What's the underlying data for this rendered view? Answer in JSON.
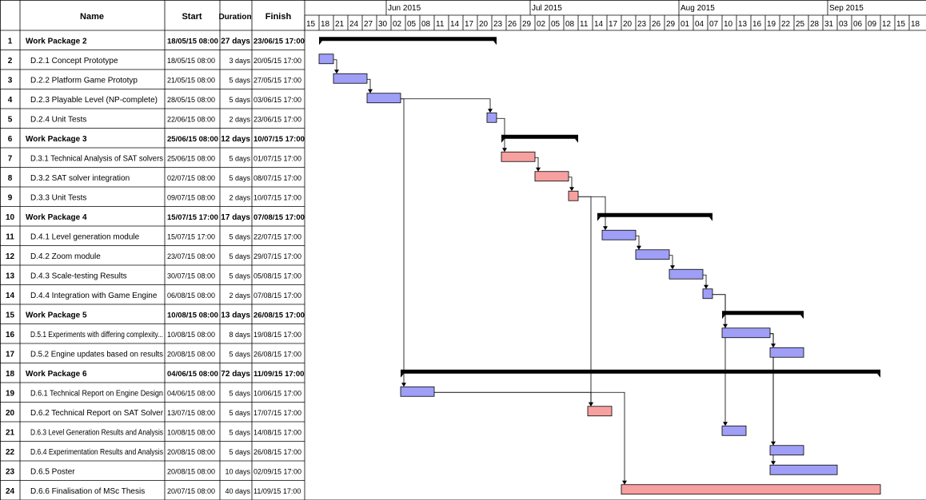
{
  "header": {
    "name_label": "Name",
    "start_label": "Start",
    "duration_label": "Duration",
    "finish_label": "Finish"
  },
  "colors": {
    "summary": "#000000",
    "task_blue": "#9f9ff7",
    "task_red": "#f7a0a0",
    "gridline": "#000000"
  },
  "chart_data": {
    "type": "gantt",
    "timeline": {
      "start_date": "2015-05-15",
      "end_date": "2015-09-18",
      "tick_interval_days": 3,
      "tick_labels": [
        "15",
        "18",
        "21",
        "24",
        "27",
        "30",
        "02",
        "05",
        "08",
        "11",
        "14",
        "17",
        "20",
        "23",
        "26",
        "29",
        "02",
        "05",
        "08",
        "11",
        "14",
        "17",
        "20",
        "23",
        "26",
        "29",
        "01",
        "04",
        "07",
        "10",
        "13",
        "16",
        "19",
        "22",
        "25",
        "28",
        "31",
        "03",
        "06",
        "09",
        "12",
        "15",
        "18"
      ],
      "months": [
        {
          "label": "Jun 2015",
          "date": "2015-06-01"
        },
        {
          "label": "Jul 2015",
          "date": "2015-07-01"
        },
        {
          "label": "Aug 2015",
          "date": "2015-08-01"
        },
        {
          "label": "Sep 2015",
          "date": "2015-09-01"
        }
      ]
    },
    "tasks": [
      {
        "id": "1",
        "name": "Work Package 2",
        "start": "18/05/15 08:00",
        "duration": "27 days",
        "finish": "23/06/15 17:00",
        "summary": true,
        "bar_start": "2015-05-18",
        "bar_end": "2015-06-23"
      },
      {
        "id": "2",
        "name": "D.2.1 Concept Prototype",
        "start": "18/05/15 08:00",
        "duration": "3 days",
        "finish": "20/05/15 17:00",
        "summary": false,
        "color": "blue",
        "bar_start": "2015-05-18",
        "bar_end": "2015-05-20"
      },
      {
        "id": "3",
        "name": "D.2.2 Platform Game Prototyp",
        "start": "21/05/15 08:00",
        "duration": "5 days",
        "finish": "27/05/15 17:00",
        "summary": false,
        "color": "blue",
        "bar_start": "2015-05-21",
        "bar_end": "2015-05-27"
      },
      {
        "id": "4",
        "name": "D.2.3 Playable Level (NP-complete)",
        "start": "28/05/15 08:00",
        "duration": "5 days",
        "finish": "03/06/15 17:00",
        "summary": false,
        "color": "blue",
        "bar_start": "2015-05-28",
        "bar_end": "2015-06-03"
      },
      {
        "id": "5",
        "name": "D.2.4 Unit Tests",
        "start": "22/06/15 08:00",
        "duration": "2 days",
        "finish": "23/06/15 17:00",
        "summary": false,
        "color": "blue",
        "bar_start": "2015-06-22",
        "bar_end": "2015-06-23"
      },
      {
        "id": "6",
        "name": "Work Package 3",
        "start": "25/06/15 08:00",
        "duration": "12 days",
        "finish": "10/07/15 17:00",
        "summary": true,
        "bar_start": "2015-06-25",
        "bar_end": "2015-07-10"
      },
      {
        "id": "7",
        "name": "D.3.1 Technical Analysis of SAT solvers",
        "start": "25/06/15 08:00",
        "duration": "5 days",
        "finish": "01/07/15 17:00",
        "summary": false,
        "color": "red",
        "bar_start": "2015-06-25",
        "bar_end": "2015-07-01"
      },
      {
        "id": "8",
        "name": "D.3.2 SAT solver integration",
        "start": "02/07/15 08:00",
        "duration": "5 days",
        "finish": "08/07/15 17:00",
        "summary": false,
        "color": "red",
        "bar_start": "2015-07-02",
        "bar_end": "2015-07-08"
      },
      {
        "id": "9",
        "name": "D.3.3 Unit Tests",
        "start": "09/07/15 08:00",
        "duration": "2 days",
        "finish": "10/07/15 17:00",
        "summary": false,
        "color": "red",
        "bar_start": "2015-07-09",
        "bar_end": "2015-07-10"
      },
      {
        "id": "10",
        "name": "Work Package 4",
        "start": "15/07/15 17:00",
        "duration": "17 days",
        "finish": "07/08/15 17:00",
        "summary": true,
        "bar_start": "2015-07-15",
        "bar_end": "2015-08-07"
      },
      {
        "id": "11",
        "name": "D.4.1  Level generation module",
        "start": "15/07/15 17:00",
        "duration": "5 days",
        "finish": "22/07/15 17:00",
        "summary": false,
        "color": "blue",
        "bar_start": "2015-07-16",
        "bar_end": "2015-07-22"
      },
      {
        "id": "12",
        "name": "D.4.2 Zoom module",
        "start": "23/07/15 08:00",
        "duration": "5 days",
        "finish": "29/07/15 17:00",
        "summary": false,
        "color": "blue",
        "bar_start": "2015-07-23",
        "bar_end": "2015-07-29"
      },
      {
        "id": "13",
        "name": "D.4.3 Scale-testing Results",
        "start": "30/07/15 08:00",
        "duration": "5 days",
        "finish": "05/08/15 17:00",
        "summary": false,
        "color": "blue",
        "bar_start": "2015-07-30",
        "bar_end": "2015-08-05"
      },
      {
        "id": "14",
        "name": "D.4.4 Integration with Game Engine",
        "start": "06/08/15 08:00",
        "duration": "2 days",
        "finish": "07/08/15 17:00",
        "summary": false,
        "color": "blue",
        "bar_start": "2015-08-06",
        "bar_end": "2015-08-07"
      },
      {
        "id": "15",
        "name": "Work Package 5",
        "start": "10/08/15 08:00",
        "duration": "13 days",
        "finish": "26/08/15 17:00",
        "summary": true,
        "bar_start": "2015-08-10",
        "bar_end": "2015-08-26"
      },
      {
        "id": "16",
        "name": "D.5.1 Experiments with differing complexity...",
        "start": "10/08/15 08:00",
        "duration": "8 days",
        "finish": "19/08/15 17:00",
        "summary": false,
        "color": "blue",
        "bar_start": "2015-08-10",
        "bar_end": "2015-08-19"
      },
      {
        "id": "17",
        "name": "D.5.2 Engine updates based on results",
        "start": "20/08/15 08:00",
        "duration": "5 days",
        "finish": "26/08/15 17:00",
        "summary": false,
        "color": "blue",
        "bar_start": "2015-08-20",
        "bar_end": "2015-08-26"
      },
      {
        "id": "18",
        "name": "Work Package 6",
        "start": "04/06/15 08:00",
        "duration": "72 days",
        "finish": "11/09/15 17:00",
        "summary": true,
        "bar_start": "2015-06-04",
        "bar_end": "2015-09-11"
      },
      {
        "id": "19",
        "name": "D.6.1 Technical Report on Engine Design",
        "start": "04/06/15 08:00",
        "duration": "5 days",
        "finish": "10/06/15 17:00",
        "summary": false,
        "color": "blue",
        "bar_start": "2015-06-04",
        "bar_end": "2015-06-10"
      },
      {
        "id": "20",
        "name": "D.6.2 Technical Report on SAT Solver",
        "start": "13/07/15 08:00",
        "duration": "5 days",
        "finish": "17/07/15 17:00",
        "summary": false,
        "color": "red",
        "bar_start": "2015-07-13",
        "bar_end": "2015-07-17"
      },
      {
        "id": "21",
        "name": "D.6.3 Level Generation Results and Analysis",
        "start": "10/08/15 08:00",
        "duration": "5 days",
        "finish": "14/08/15 17:00",
        "summary": false,
        "color": "blue",
        "bar_start": "2015-08-10",
        "bar_end": "2015-08-14"
      },
      {
        "id": "22",
        "name": "D.6.4 Experimentation Results and Analysis",
        "start": "20/08/15 08:00",
        "duration": "5 days",
        "finish": "26/08/15 17:00",
        "summary": false,
        "color": "blue",
        "bar_start": "2015-08-20",
        "bar_end": "2015-08-26"
      },
      {
        "id": "23",
        "name": "D.6.5 Poster",
        "start": "20/08/15 08:00",
        "duration": "10 days",
        "finish": "02/09/15 17:00",
        "summary": false,
        "color": "blue",
        "bar_start": "2015-08-20",
        "bar_end": "2015-09-02"
      },
      {
        "id": "24",
        "name": "D.6.6 Finalisation of MSc Thesis",
        "start": "20/07/15 08:00",
        "duration": "40 days",
        "finish": "11/09/15 17:00",
        "summary": false,
        "color": "red",
        "bar_start": "2015-07-20",
        "bar_end": "2015-09-11"
      }
    ],
    "dependencies": [
      [
        "2",
        "3"
      ],
      [
        "3",
        "4"
      ],
      [
        "4",
        "5"
      ],
      [
        "5",
        "7"
      ],
      [
        "7",
        "8"
      ],
      [
        "8",
        "9"
      ],
      [
        "9",
        "11"
      ],
      [
        "11",
        "12"
      ],
      [
        "12",
        "13"
      ],
      [
        "13",
        "14"
      ],
      [
        "14",
        "16"
      ],
      [
        "16",
        "17"
      ],
      [
        "4",
        "19"
      ],
      [
        "19",
        "20"
      ],
      [
        "9",
        "20"
      ],
      [
        "14",
        "21"
      ],
      [
        "16",
        "22"
      ],
      [
        "16",
        "23"
      ],
      [
        "19",
        "24"
      ]
    ]
  }
}
